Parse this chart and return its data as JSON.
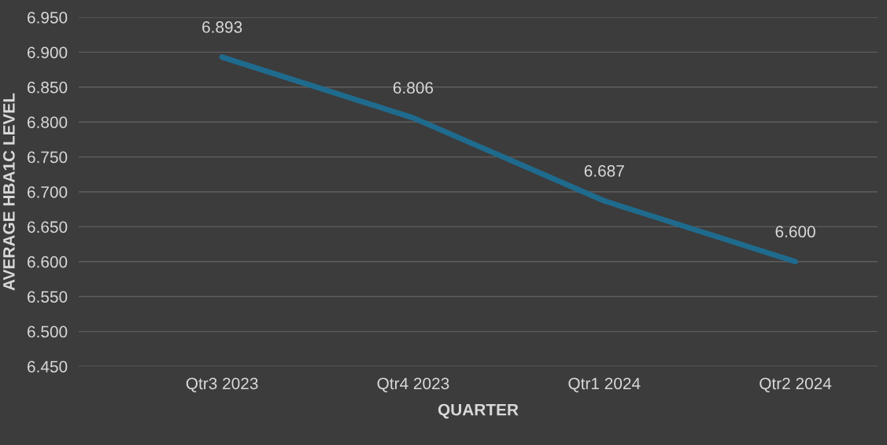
{
  "chart_data": {
    "type": "line",
    "xlabel": "QUARTER",
    "ylabel": "AVERAGE HBA1C LEVEL",
    "categories": [
      "Qtr3 2023",
      "Qtr4 2023",
      "Qtr1 2024",
      "Qtr2 2024"
    ],
    "series": [
      {
        "color": "#1f6b8e",
        "values": [
          6.893,
          6.806,
          6.687,
          6.6
        ],
        "value_labels": [
          "6.893",
          "6.806",
          "6.687",
          "6.600"
        ]
      }
    ],
    "ylim": [
      6.45,
      6.95
    ],
    "yticks": [
      {
        "value": 6.45,
        "label": "6.450"
      },
      {
        "value": 6.5,
        "label": "6.500"
      },
      {
        "value": 6.55,
        "label": "6.550"
      },
      {
        "value": 6.6,
        "label": "6.600"
      },
      {
        "value": 6.65,
        "label": "6.650"
      },
      {
        "value": 6.7,
        "label": "6.700"
      },
      {
        "value": 6.75,
        "label": "6.750"
      },
      {
        "value": 6.8,
        "label": "6.800"
      },
      {
        "value": 6.85,
        "label": "6.850"
      },
      {
        "value": 6.9,
        "label": "6.900"
      },
      {
        "value": 6.95,
        "label": "6.950"
      }
    ],
    "grid": "y",
    "marker": "none",
    "line_style": "solid",
    "legend": false
  }
}
